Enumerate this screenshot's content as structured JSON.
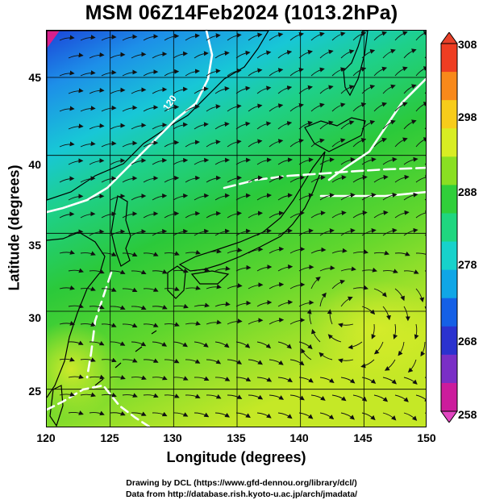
{
  "title": "MSM 06Z14Feb2024 (1013.2hPa)",
  "x_axis": {
    "title": "Longitude (degrees)",
    "range": [
      120,
      150
    ],
    "ticks": [
      "120",
      "125",
      "130",
      "135",
      "140",
      "145",
      "150"
    ]
  },
  "y_axis": {
    "title": "Latitude  (degrees)",
    "range": [
      22.5,
      48
    ],
    "ticks": [
      "25",
      "30",
      "35",
      "40",
      "45"
    ]
  },
  "colorbar": {
    "range": [
      258,
      308
    ],
    "labels": [
      "308",
      "298",
      "288",
      "278",
      "268",
      "258"
    ],
    "colors": [
      "#cc1c9c",
      "#7a2fc6",
      "#2b32cf",
      "#1560e6",
      "#10a6e6",
      "#17d2cb",
      "#1fd67f",
      "#30cf3a",
      "#8adf22",
      "#d8ed23",
      "#f7cc1a",
      "#f8891a",
      "#ee3d22"
    ]
  },
  "contour_label": "120",
  "credits": {
    "line1": "Drawing by DCL (https://www.gfd-dennou.org/library/dcl/)",
    "line2": "Data from http://database.rish.kyoto-u.ac.jp/arch/jmadata/"
  }
}
